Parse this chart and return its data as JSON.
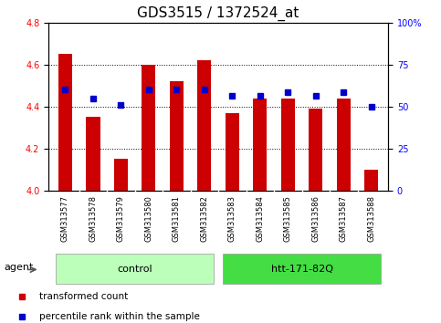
{
  "title": "GDS3515 / 1372524_at",
  "categories": [
    "GSM313577",
    "GSM313578",
    "GSM313579",
    "GSM313580",
    "GSM313581",
    "GSM313582",
    "GSM313583",
    "GSM313584",
    "GSM313585",
    "GSM313586",
    "GSM313587",
    "GSM313588"
  ],
  "red_values": [
    4.65,
    4.35,
    4.15,
    4.6,
    4.52,
    4.62,
    4.37,
    4.44,
    4.44,
    4.39,
    4.44,
    4.1
  ],
  "blue_values_left": [
    4.48,
    4.44,
    4.41,
    4.48,
    4.48,
    4.48,
    4.45,
    4.45,
    4.47,
    4.45,
    4.47,
    4.4
  ],
  "ylim_left": [
    4.0,
    4.8
  ],
  "ylim_right": [
    0,
    100
  ],
  "yticks_left": [
    4.0,
    4.2,
    4.4,
    4.6,
    4.8
  ],
  "yticks_right": [
    0,
    25,
    50,
    75,
    100
  ],
  "ytick_right_labels": [
    "0",
    "25",
    "50",
    "75",
    "100%"
  ],
  "groups": [
    {
      "label": "control",
      "start": 0,
      "end": 5,
      "color": "#bbffbb"
    },
    {
      "label": "htt-171-82Q",
      "start": 6,
      "end": 11,
      "color": "#44dd44"
    }
  ],
  "agent_label": "agent",
  "bar_color": "#cc0000",
  "dot_color": "#0000cc",
  "bar_width": 0.5,
  "legend_items": [
    {
      "label": "transformed count",
      "color": "#cc0000"
    },
    {
      "label": "percentile rank within the sample",
      "color": "#0000cc"
    }
  ],
  "title_fontsize": 11,
  "tick_fontsize": 7,
  "label_fontsize": 8
}
